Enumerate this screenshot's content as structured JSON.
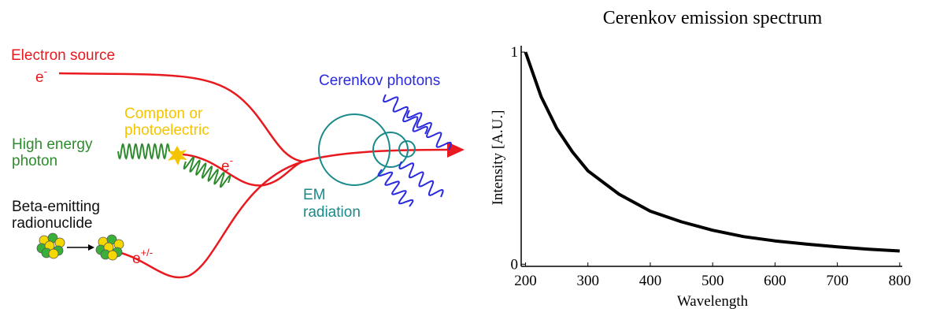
{
  "diagram": {
    "electron_source": "Electron source",
    "electron_symbol": "e",
    "electron_charge": "-",
    "compton": [
      "Compton or",
      "photoelectric"
    ],
    "photon": [
      "High energy",
      "photon"
    ],
    "compton_electron_symbol": "e",
    "compton_electron_charge": "-",
    "beta": [
      "Beta-emitting",
      "radionuclide"
    ],
    "beta_symbol": "e",
    "beta_charge": "+/-",
    "cerenkov": "Cerenkov photons",
    "em": [
      "EM",
      "radiation"
    ]
  },
  "chart_data": {
    "type": "line",
    "title": "Cerenkov emission spectrum",
    "x_label": "Wavelength",
    "y_label": "Intensity [A.U.]",
    "x": [
      200,
      225,
      250,
      275,
      300,
      350,
      400,
      450,
      500,
      550,
      600,
      650,
      700,
      750,
      800
    ],
    "series": [
      {
        "color": "#000000",
        "values": [
          1,
          0.79,
          0.64,
          0.53,
          0.44,
          0.33,
          0.25,
          0.2,
          0.16,
          0.13,
          0.11,
          0.095,
          0.082,
          0.071,
          0.0625
        ]
      }
    ],
    "xlim": [
      193,
      804
    ],
    "ylim": [
      -0.01,
      1.03
    ],
    "xticks": [
      200,
      300,
      400,
      500,
      600,
      700,
      800
    ],
    "yticks": [
      0,
      1
    ]
  }
}
